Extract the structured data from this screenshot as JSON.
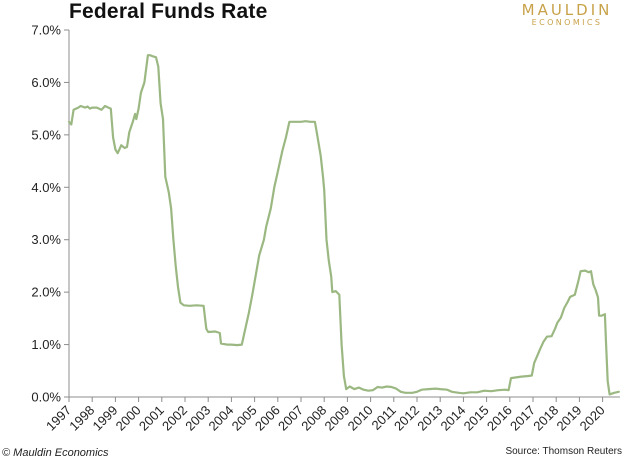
{
  "header": {
    "title": "Federal Funds Rate",
    "logo_main": "MAULDIN",
    "logo_sub": "ECONOMICS",
    "logo_color": "#c8a24a"
  },
  "footer": {
    "credit": "© Mauldin Economics",
    "source": "Source: Thomson Reuters"
  },
  "colors": {
    "line": "#9bb882",
    "axis": "#8c8c8c",
    "text": "#222222"
  },
  "chart_data": {
    "type": "line",
    "title": "Federal Funds Rate",
    "xlabel": "",
    "ylabel": "",
    "xlim": [
      1997,
      2020.75
    ],
    "ylim": [
      0,
      7
    ],
    "y_ticks": [
      "0.0%",
      "1.0%",
      "2.0%",
      "3.0%",
      "4.0%",
      "5.0%",
      "6.0%",
      "7.0%"
    ],
    "x_ticks": [
      "1997",
      "1998",
      "1999",
      "2000",
      "2001",
      "2002",
      "2003",
      "2004",
      "2005",
      "2006",
      "2007",
      "2008",
      "2009",
      "2010",
      "2011",
      "2012",
      "2013",
      "2014",
      "2015",
      "2016",
      "2017",
      "2018",
      "2019",
      "2020"
    ],
    "grid": false,
    "legend": "none",
    "series": [
      {
        "points": [
          [
            1997.0,
            5.25
          ],
          [
            1997.1,
            5.2
          ],
          [
            1997.2,
            5.48
          ],
          [
            1997.4,
            5.52
          ],
          [
            1997.5,
            5.55
          ],
          [
            1997.7,
            5.52
          ],
          [
            1997.8,
            5.54
          ],
          [
            1997.9,
            5.5
          ],
          [
            1998.0,
            5.52
          ],
          [
            1998.2,
            5.52
          ],
          [
            1998.4,
            5.48
          ],
          [
            1998.55,
            5.55
          ],
          [
            1998.7,
            5.52
          ],
          [
            1998.8,
            5.5
          ],
          [
            1998.9,
            4.95
          ],
          [
            1999.0,
            4.72
          ],
          [
            1999.1,
            4.65
          ],
          [
            1999.25,
            4.8
          ],
          [
            1999.4,
            4.75
          ],
          [
            1999.5,
            4.77
          ],
          [
            1999.6,
            5.05
          ],
          [
            1999.75,
            5.25
          ],
          [
            1999.85,
            5.4
          ],
          [
            1999.9,
            5.3
          ],
          [
            2000.0,
            5.5
          ],
          [
            2000.1,
            5.8
          ],
          [
            2000.25,
            6.0
          ],
          [
            2000.4,
            6.52
          ],
          [
            2000.5,
            6.52
          ],
          [
            2000.6,
            6.5
          ],
          [
            2000.75,
            6.48
          ],
          [
            2000.85,
            6.3
          ],
          [
            2000.95,
            5.6
          ],
          [
            2001.05,
            5.3
          ],
          [
            2001.15,
            4.2
          ],
          [
            2001.3,
            3.9
          ],
          [
            2001.4,
            3.6
          ],
          [
            2001.5,
            3.0
          ],
          [
            2001.6,
            2.5
          ],
          [
            2001.7,
            2.1
          ],
          [
            2001.8,
            1.8
          ],
          [
            2001.95,
            1.75
          ],
          [
            2002.2,
            1.74
          ],
          [
            2002.5,
            1.75
          ],
          [
            2002.8,
            1.74
          ],
          [
            2002.92,
            1.3
          ],
          [
            2003.0,
            1.24
          ],
          [
            2003.3,
            1.25
          ],
          [
            2003.5,
            1.22
          ],
          [
            2003.55,
            1.02
          ],
          [
            2003.8,
            1.0
          ],
          [
            2004.0,
            1.0
          ],
          [
            2004.25,
            0.99
          ],
          [
            2004.45,
            1.0
          ],
          [
            2004.6,
            1.3
          ],
          [
            2004.75,
            1.6
          ],
          [
            2004.9,
            1.95
          ],
          [
            2005.0,
            2.2
          ],
          [
            2005.2,
            2.7
          ],
          [
            2005.4,
            3.0
          ],
          [
            2005.5,
            3.25
          ],
          [
            2005.7,
            3.6
          ],
          [
            2005.85,
            4.0
          ],
          [
            2006.0,
            4.3
          ],
          [
            2006.2,
            4.7
          ],
          [
            2006.35,
            4.95
          ],
          [
            2006.5,
            5.25
          ],
          [
            2006.8,
            5.25
          ],
          [
            2007.0,
            5.25
          ],
          [
            2007.2,
            5.26
          ],
          [
            2007.4,
            5.25
          ],
          [
            2007.6,
            5.25
          ],
          [
            2007.7,
            5.0
          ],
          [
            2007.85,
            4.6
          ],
          [
            2007.95,
            4.2
          ],
          [
            2008.0,
            3.95
          ],
          [
            2008.1,
            3.0
          ],
          [
            2008.2,
            2.6
          ],
          [
            2008.3,
            2.3
          ],
          [
            2008.35,
            2.0
          ],
          [
            2008.5,
            2.02
          ],
          [
            2008.65,
            1.95
          ],
          [
            2008.75,
            1.0
          ],
          [
            2008.85,
            0.4
          ],
          [
            2008.95,
            0.15
          ],
          [
            2009.1,
            0.2
          ],
          [
            2009.3,
            0.15
          ],
          [
            2009.5,
            0.18
          ],
          [
            2009.7,
            0.14
          ],
          [
            2009.9,
            0.12
          ],
          [
            2010.1,
            0.13
          ],
          [
            2010.3,
            0.19
          ],
          [
            2010.5,
            0.18
          ],
          [
            2010.7,
            0.2
          ],
          [
            2010.9,
            0.19
          ],
          [
            2011.1,
            0.16
          ],
          [
            2011.3,
            0.1
          ],
          [
            2011.5,
            0.08
          ],
          [
            2011.8,
            0.08
          ],
          [
            2012.0,
            0.1
          ],
          [
            2012.2,
            0.14
          ],
          [
            2012.5,
            0.15
          ],
          [
            2012.8,
            0.16
          ],
          [
            2013.0,
            0.15
          ],
          [
            2013.3,
            0.14
          ],
          [
            2013.5,
            0.1
          ],
          [
            2013.8,
            0.08
          ],
          [
            2014.0,
            0.07
          ],
          [
            2014.3,
            0.09
          ],
          [
            2014.6,
            0.09
          ],
          [
            2014.9,
            0.12
          ],
          [
            2015.2,
            0.11
          ],
          [
            2015.5,
            0.13
          ],
          [
            2015.8,
            0.14
          ],
          [
            2015.95,
            0.13
          ],
          [
            2016.05,
            0.36
          ],
          [
            2016.2,
            0.37
          ],
          [
            2016.5,
            0.39
          ],
          [
            2016.8,
            0.4
          ],
          [
            2016.95,
            0.41
          ],
          [
            2017.05,
            0.65
          ],
          [
            2017.2,
            0.8
          ],
          [
            2017.3,
            0.91
          ],
          [
            2017.45,
            1.05
          ],
          [
            2017.6,
            1.15
          ],
          [
            2017.8,
            1.16
          ],
          [
            2017.95,
            1.3
          ],
          [
            2018.05,
            1.42
          ],
          [
            2018.2,
            1.51
          ],
          [
            2018.35,
            1.7
          ],
          [
            2018.5,
            1.82
          ],
          [
            2018.6,
            1.91
          ],
          [
            2018.8,
            1.95
          ],
          [
            2018.95,
            2.2
          ],
          [
            2019.05,
            2.4
          ],
          [
            2019.25,
            2.41
          ],
          [
            2019.4,
            2.38
          ],
          [
            2019.5,
            2.4
          ],
          [
            2019.6,
            2.15
          ],
          [
            2019.7,
            2.04
          ],
          [
            2019.8,
            1.9
          ],
          [
            2019.85,
            1.55
          ],
          [
            2019.95,
            1.55
          ],
          [
            2020.1,
            1.58
          ],
          [
            2020.15,
            1.0
          ],
          [
            2020.22,
            0.3
          ],
          [
            2020.3,
            0.05
          ],
          [
            2020.5,
            0.08
          ],
          [
            2020.6,
            0.09
          ],
          [
            2020.7,
            0.1
          ]
        ]
      }
    ]
  }
}
